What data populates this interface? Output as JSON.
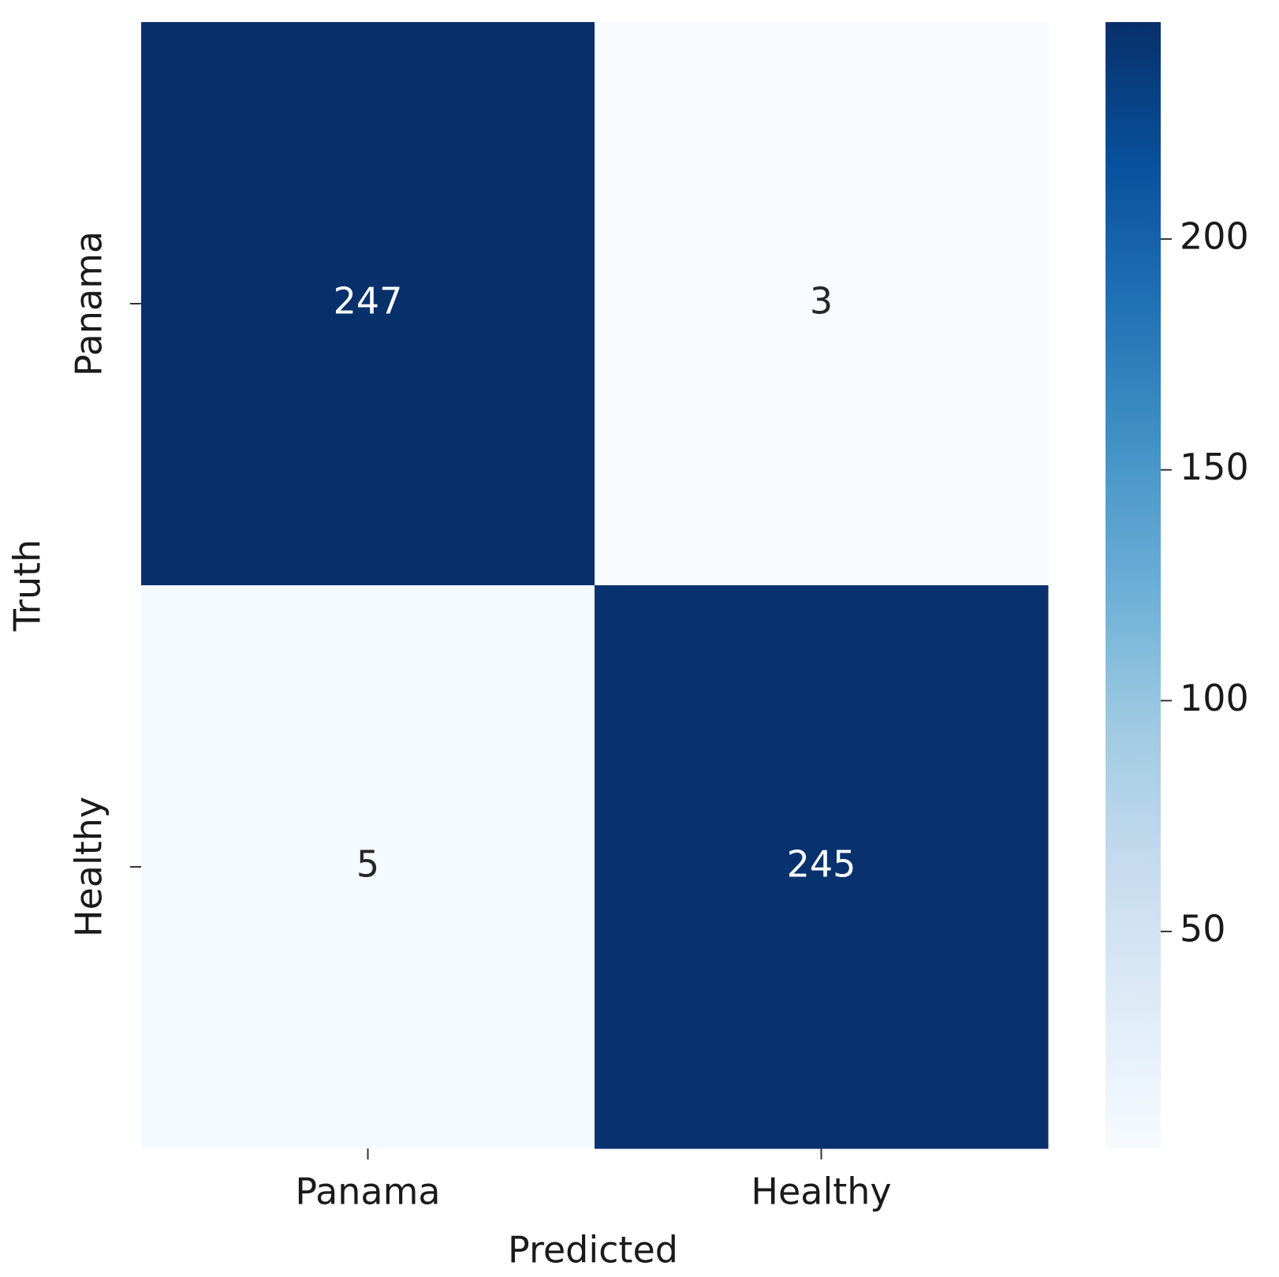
{
  "chart_data": {
    "type": "heatmap",
    "x_label": "Predicted",
    "y_label": "Truth",
    "x_categories": [
      "Panama",
      "Healthy"
    ],
    "y_categories": [
      "Panama",
      "Healthy"
    ],
    "values": [
      [
        247,
        3
      ],
      [
        5,
        245
      ]
    ],
    "cmap": "Blues",
    "clim": [
      3,
      247
    ],
    "cticks": [
      50,
      100,
      150,
      200
    ]
  }
}
